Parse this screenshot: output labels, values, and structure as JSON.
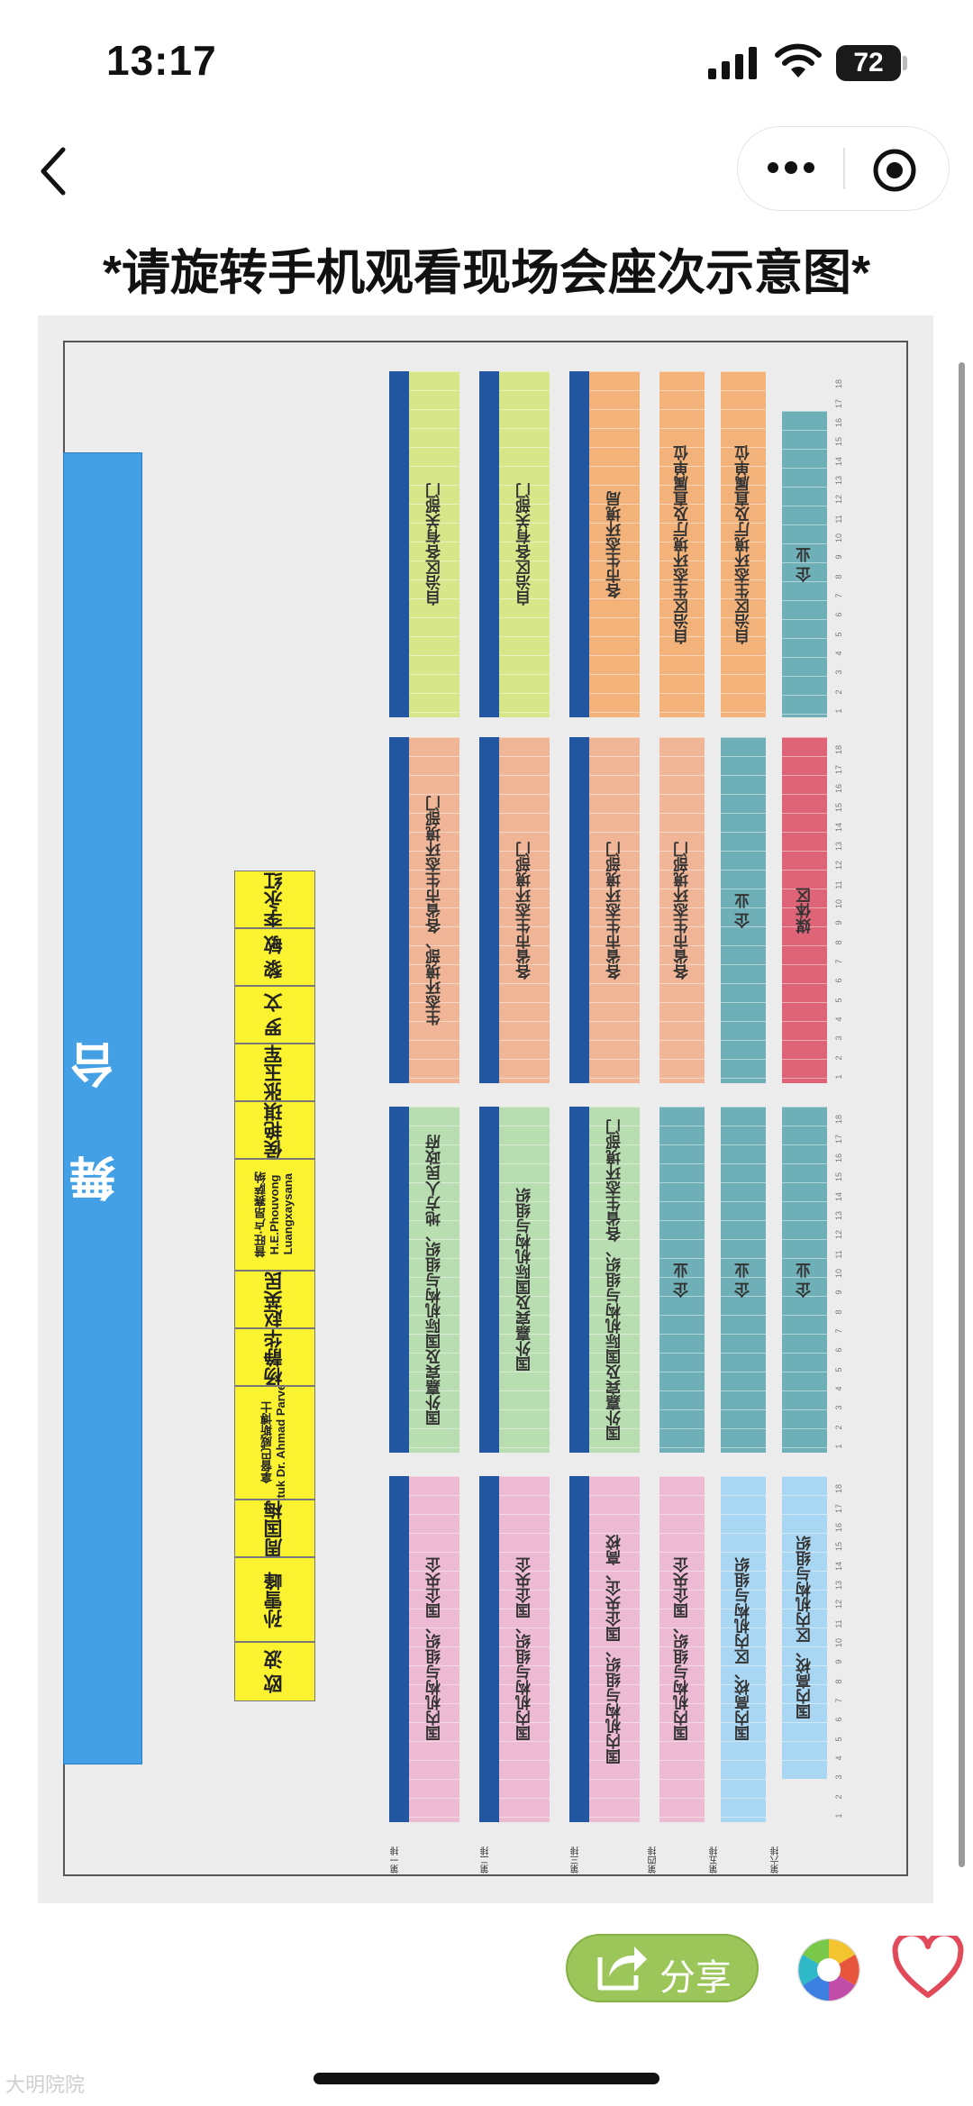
{
  "status_bar": {
    "time": "13:17",
    "battery": "72"
  },
  "page": {
    "title": "*请旋转手机观看现场会座次示意图*"
  },
  "seating": {
    "stage_label": "舞 台",
    "vip_seats": [
      {
        "name": "欧 波"
      },
      {
        "name": "孙雪峰"
      },
      {
        "name": "周国梅"
      },
      {
        "name": "拿督巴威斯博士\nDatuk Dr. Ahmad Parveez"
      },
      {
        "name": "杨静华"
      },
      {
        "name": "赵英民"
      },
      {
        "name": "普旺·卢昂赛萨纳\nH.E.Phouvong\nLuangxaysana"
      },
      {
        "name": "侯艳琪"
      },
      {
        "name": "张玉军"
      },
      {
        "name": "罗 文"
      },
      {
        "name": "黎 敏"
      },
      {
        "name": "李永红"
      }
    ],
    "row_labels": [
      "第一排",
      "第二排",
      "第三排",
      "第四排",
      "第五排",
      "第六排"
    ],
    "seat_numbers": [
      "1",
      "2",
      "3",
      "4",
      "5",
      "6",
      "7",
      "8",
      "9",
      "10",
      "11",
      "12",
      "13",
      "14",
      "15",
      "16",
      "17",
      "18"
    ],
    "sections": [
      {
        "blocks": [
          {
            "label": "国内机构与组织、国企央企",
            "color": "#edbad3"
          },
          {
            "label": "国内机构与组织、国企央企",
            "color": "#edbad3"
          },
          {
            "label": "国内机构与组织、国企央企、高校",
            "color": "#edbad3"
          },
          {
            "label": "国内机构与组织、国企央企",
            "color": "#edbad3"
          },
          {
            "label": "国内高校、区内机构与组织",
            "color": "#a9d6f2"
          },
          {
            "label": "国内高校、区内机构与组织",
            "color": "#a9d6f2"
          }
        ]
      },
      {
        "blocks": [
          {
            "label": "国外嘉宾及国际机构与组织、地方人民政府",
            "color": "#b8ddb0"
          },
          {
            "label": "国外嘉宾及国际机构与组织",
            "color": "#b8ddb0"
          },
          {
            "label": "国外嘉宾及国际机构与组织、各省生态环境部门",
            "color": "#b8ddb0"
          },
          {
            "label": "企 业",
            "color": "#6fb0b8"
          },
          {
            "label": "企 业",
            "color": "#6fb0b8"
          },
          {
            "label": "企 业",
            "color": "#6fb0b8"
          }
        ]
      },
      {
        "blocks": [
          {
            "label": "生态环境部、各省市生态环境部门",
            "color": "#efb596"
          },
          {
            "label": "各省市生态环境部门",
            "color": "#efb596"
          },
          {
            "label": "各省市生态环境部门",
            "color": "#efb596"
          },
          {
            "label": "各省市生态环境部门",
            "color": "#efb596"
          },
          {
            "label": "企 业",
            "color": "#6fb0b8"
          },
          {
            "label": "媒体区",
            "color": "#e06478"
          }
        ]
      },
      {
        "blocks": [
          {
            "label": "自治区各有关部门",
            "color": "#d8e68a"
          },
          {
            "label": "自治区各有关部门",
            "color": "#d8e68a"
          },
          {
            "label": "各市生态环境局",
            "color": "#f2b27a"
          },
          {
            "label": "自治区生态环境厅及直属单位",
            "color": "#f2b27a"
          },
          {
            "label": "自治区生态环境厅及直属单位",
            "color": "#f2b27a"
          },
          {
            "label": "企 业",
            "color": "#6fb0b8"
          }
        ]
      }
    ]
  },
  "bottom_bar": {
    "share_label": "分享",
    "watermark": "大明院院"
  },
  "colors": {
    "stage": "#44a0e4",
    "vip": "#fbf230",
    "aisle_strip": "#2356a0",
    "share": "#9cc55a"
  }
}
